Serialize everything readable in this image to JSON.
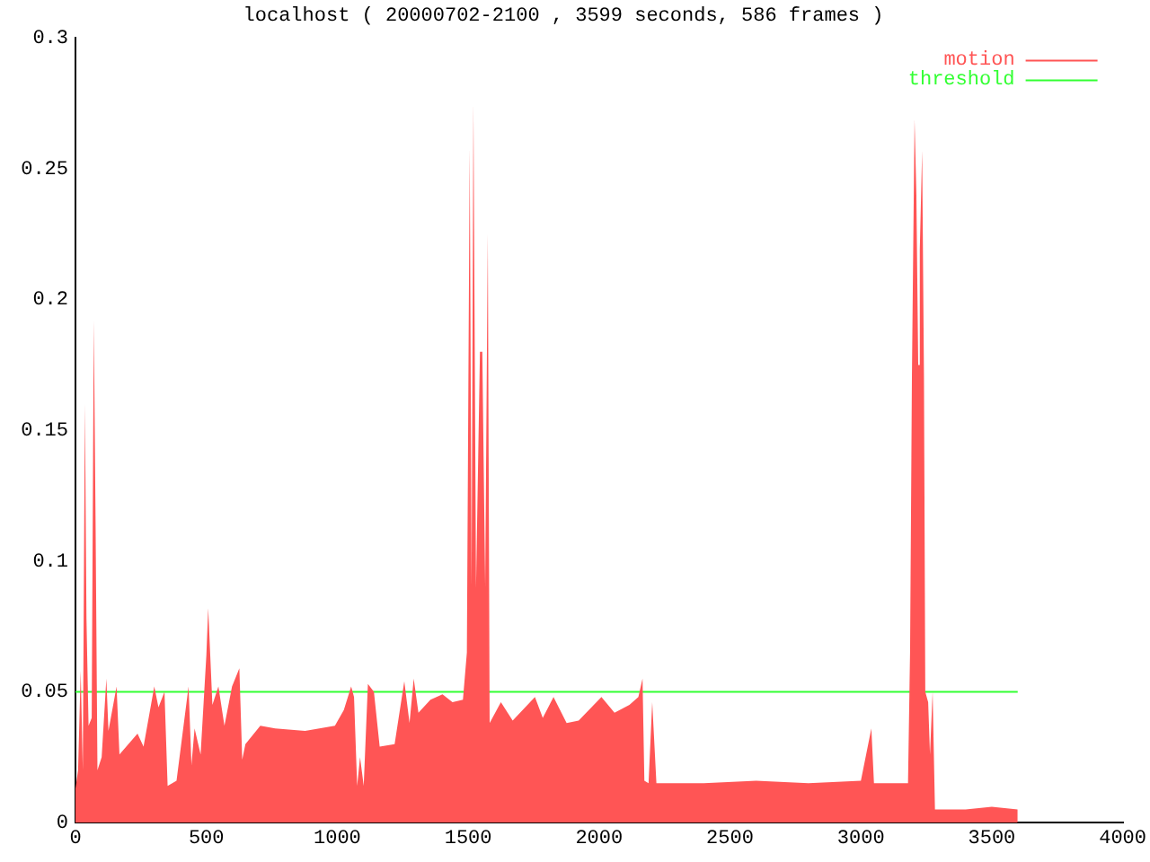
{
  "chart_data": {
    "type": "area",
    "title": "localhost ( 20000702-2100 , 3599 seconds, 586 frames )",
    "xlim": [
      0,
      4000
    ],
    "xticks": [
      0,
      500,
      1000,
      1500,
      2000,
      2500,
      3000,
      3500,
      4000
    ],
    "ylim": [
      0,
      0.3
    ],
    "yticks": [
      0,
      0.05,
      0.1,
      0.15,
      0.2,
      0.25,
      0.3
    ],
    "grid": false,
    "legend": "top right",
    "series": [
      {
        "name": "motion",
        "color": "#ff5555",
        "x": [
          0,
          10,
          20,
          28,
          36,
          42,
          50,
          62,
          70,
          77,
          84,
          100,
          118,
          126,
          157,
          168,
          237,
          260,
          301,
          317,
          340,
          352,
          386,
          432,
          443,
          455,
          478,
          500,
          507,
          523,
          546,
          569,
          598,
          626,
          637,
          649,
          706,
          763,
          877,
          991,
          1025,
          1053,
          1064,
          1076,
          1087,
          1101,
          1117,
          1140,
          1162,
          1219,
          1256,
          1276,
          1292,
          1310,
          1356,
          1402,
          1440,
          1480,
          1495,
          1506,
          1513,
          1520,
          1530,
          1545,
          1554,
          1565,
          1575,
          1582,
          1625,
          1670,
          1755,
          1785,
          1826,
          1876,
          1922,
          2009,
          2059,
          2116,
          2150,
          2166,
          2173,
          2189,
          2203,
          2219,
          2400,
          2600,
          2800,
          3000,
          3040,
          3050,
          3180,
          3188,
          3195,
          3205,
          3212,
          3219,
          3225,
          3234,
          3241,
          3246,
          3257,
          3264,
          3274,
          3283,
          3400,
          3500,
          3599
        ],
        "values": [
          0.013,
          0.02,
          0.058,
          0.02,
          0.16,
          0.078,
          0.037,
          0.04,
          0.192,
          0.112,
          0.02,
          0.025,
          0.055,
          0.035,
          0.052,
          0.026,
          0.034,
          0.029,
          0.052,
          0.044,
          0.05,
          0.014,
          0.016,
          0.052,
          0.022,
          0.036,
          0.026,
          0.064,
          0.082,
          0.045,
          0.052,
          0.037,
          0.052,
          0.059,
          0.024,
          0.03,
          0.037,
          0.036,
          0.035,
          0.037,
          0.043,
          0.052,
          0.048,
          0.014,
          0.025,
          0.014,
          0.053,
          0.05,
          0.029,
          0.03,
          0.054,
          0.038,
          0.055,
          0.042,
          0.047,
          0.049,
          0.046,
          0.047,
          0.065,
          0.258,
          0.09,
          0.275,
          0.09,
          0.18,
          0.18,
          0.09,
          0.225,
          0.038,
          0.046,
          0.039,
          0.048,
          0.04,
          0.048,
          0.038,
          0.039,
          0.048,
          0.042,
          0.045,
          0.048,
          0.055,
          0.016,
          0.015,
          0.046,
          0.015,
          0.015,
          0.016,
          0.015,
          0.016,
          0.036,
          0.015,
          0.015,
          0.066,
          0.171,
          0.269,
          0.24,
          0.175,
          0.219,
          0.257,
          0.17,
          0.05,
          0.046,
          0.026,
          0.05,
          0.005,
          0.005,
          0.006,
          0.005
        ]
      },
      {
        "name": "threshold",
        "type": "line",
        "color": "#33ff33",
        "x": [
          0,
          3599
        ],
        "values": [
          0.05,
          0.05
        ]
      }
    ]
  }
}
